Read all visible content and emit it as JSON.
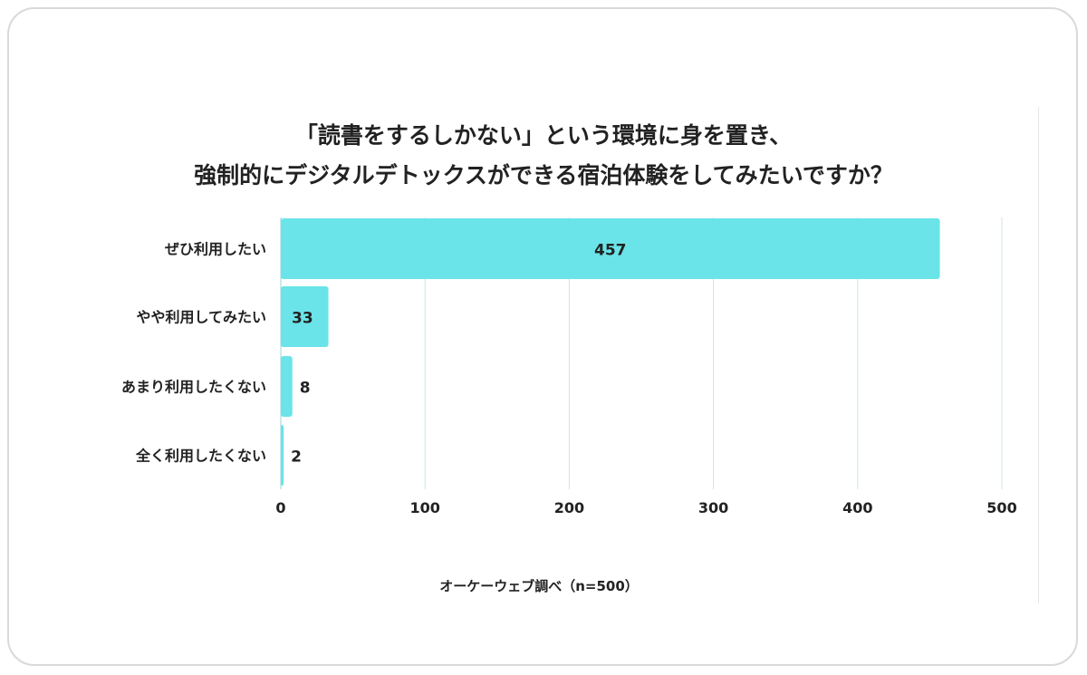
{
  "chart_data": {
    "type": "bar",
    "orientation": "horizontal",
    "title_lines": [
      "「読書をするしかない」という環境に身を置き、",
      "強制的にデジタルデトックスができる宿泊体験をしてみたいですか？"
    ],
    "categories": [
      "ぜひ利用したい",
      "やや利用してみたい",
      "あまり利用したくない",
      "全く利用したくない"
    ],
    "values": [
      457,
      33,
      8,
      2
    ],
    "xlim": [
      0,
      500
    ],
    "xticks": [
      0,
      100,
      200,
      300,
      400,
      500
    ],
    "grid": true,
    "bar_color": "#6ae4e8",
    "grid_color": "#cfe3e5",
    "source": "オーケーウェブ調べ（n=500）"
  }
}
